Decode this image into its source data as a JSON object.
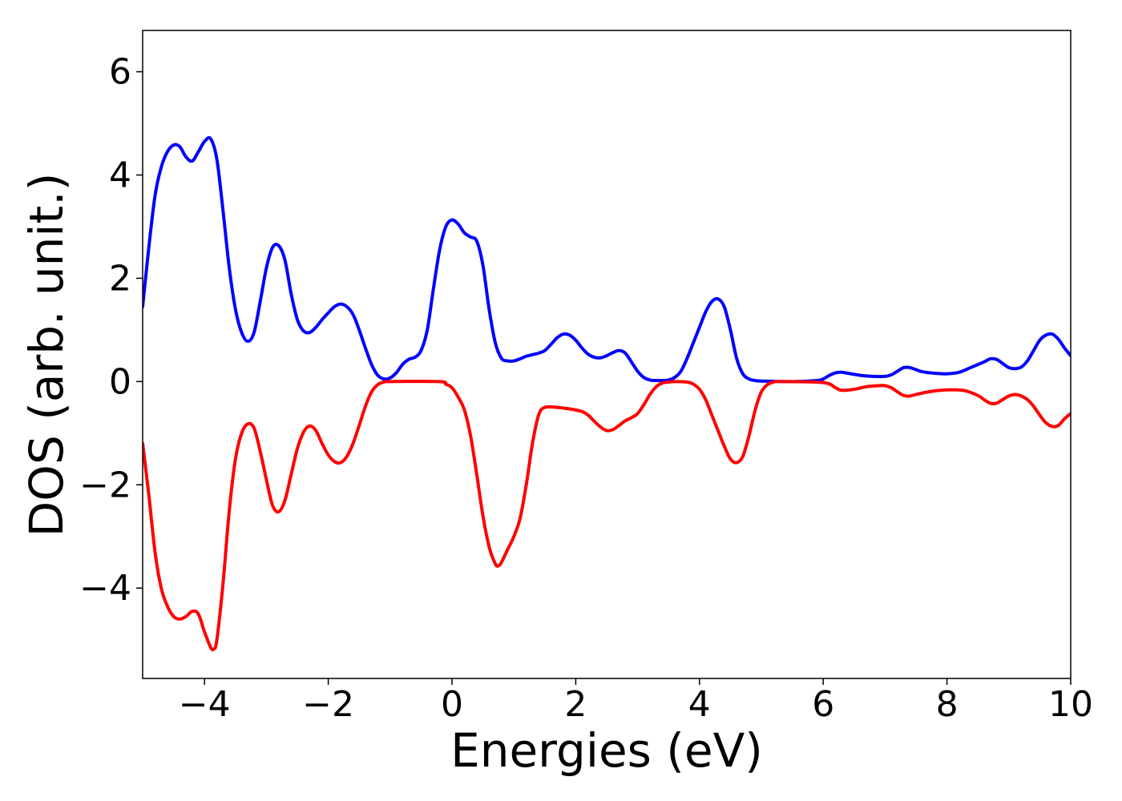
{
  "chart_data": {
    "type": "line",
    "title": "",
    "xlabel": "Energies (eV)",
    "ylabel": "DOS (arb. unit.)",
    "xlim": [
      -5,
      10
    ],
    "ylim": [
      -5.75,
      6.8
    ],
    "xticks": [
      -4,
      -2,
      0,
      2,
      4,
      6,
      8,
      10
    ],
    "xtick_labels": [
      "−4",
      "−2",
      "0",
      "2",
      "4",
      "6",
      "8",
      "10"
    ],
    "yticks": [
      -4,
      -2,
      0,
      2,
      4,
      6
    ],
    "ytick_labels": [
      "−4",
      "−2",
      "0",
      "2",
      "4",
      "6"
    ],
    "grid": false,
    "legend": "none",
    "series": [
      {
        "color": "#0000ff",
        "points": [
          [
            -5.0,
            1.45
          ],
          [
            -4.9,
            2.6
          ],
          [
            -4.8,
            3.6
          ],
          [
            -4.7,
            4.15
          ],
          [
            -4.6,
            4.45
          ],
          [
            -4.5,
            4.58
          ],
          [
            -4.4,
            4.55
          ],
          [
            -4.3,
            4.35
          ],
          [
            -4.2,
            4.27
          ],
          [
            -4.1,
            4.45
          ],
          [
            -4.0,
            4.65
          ],
          [
            -3.9,
            4.7
          ],
          [
            -3.8,
            4.3
          ],
          [
            -3.7,
            3.3
          ],
          [
            -3.6,
            2.2
          ],
          [
            -3.5,
            1.4
          ],
          [
            -3.4,
            0.95
          ],
          [
            -3.3,
            0.78
          ],
          [
            -3.2,
            0.95
          ],
          [
            -3.1,
            1.55
          ],
          [
            -3.0,
            2.2
          ],
          [
            -2.9,
            2.6
          ],
          [
            -2.8,
            2.63
          ],
          [
            -2.7,
            2.35
          ],
          [
            -2.6,
            1.7
          ],
          [
            -2.5,
            1.2
          ],
          [
            -2.4,
            0.98
          ],
          [
            -2.3,
            0.95
          ],
          [
            -2.2,
            1.05
          ],
          [
            -2.1,
            1.2
          ],
          [
            -2.0,
            1.33
          ],
          [
            -1.9,
            1.45
          ],
          [
            -1.8,
            1.5
          ],
          [
            -1.7,
            1.45
          ],
          [
            -1.6,
            1.3
          ],
          [
            -1.5,
            1.0
          ],
          [
            -1.4,
            0.65
          ],
          [
            -1.3,
            0.33
          ],
          [
            -1.2,
            0.12
          ],
          [
            -1.1,
            0.05
          ],
          [
            -1.0,
            0.07
          ],
          [
            -0.9,
            0.17
          ],
          [
            -0.8,
            0.33
          ],
          [
            -0.7,
            0.43
          ],
          [
            -0.6,
            0.47
          ],
          [
            -0.5,
            0.6
          ],
          [
            -0.4,
            1.0
          ],
          [
            -0.3,
            1.8
          ],
          [
            -0.2,
            2.55
          ],
          [
            -0.1,
            3.0
          ],
          [
            0.0,
            3.13
          ],
          [
            0.1,
            3.05
          ],
          [
            0.2,
            2.88
          ],
          [
            0.3,
            2.8
          ],
          [
            0.4,
            2.72
          ],
          [
            0.5,
            2.25
          ],
          [
            0.6,
            1.4
          ],
          [
            0.7,
            0.75
          ],
          [
            0.8,
            0.45
          ],
          [
            0.9,
            0.4
          ],
          [
            1.0,
            0.4
          ],
          [
            1.1,
            0.44
          ],
          [
            1.2,
            0.49
          ],
          [
            1.3,
            0.52
          ],
          [
            1.4,
            0.55
          ],
          [
            1.5,
            0.6
          ],
          [
            1.6,
            0.72
          ],
          [
            1.7,
            0.85
          ],
          [
            1.8,
            0.92
          ],
          [
            1.9,
            0.9
          ],
          [
            2.0,
            0.8
          ],
          [
            2.1,
            0.65
          ],
          [
            2.2,
            0.53
          ],
          [
            2.3,
            0.47
          ],
          [
            2.4,
            0.46
          ],
          [
            2.5,
            0.5
          ],
          [
            2.6,
            0.56
          ],
          [
            2.7,
            0.6
          ],
          [
            2.8,
            0.55
          ],
          [
            2.9,
            0.38
          ],
          [
            3.0,
            0.2
          ],
          [
            3.1,
            0.08
          ],
          [
            3.2,
            0.03
          ],
          [
            3.3,
            0.02
          ],
          [
            3.4,
            0.02
          ],
          [
            3.5,
            0.03
          ],
          [
            3.6,
            0.08
          ],
          [
            3.7,
            0.2
          ],
          [
            3.8,
            0.45
          ],
          [
            3.9,
            0.75
          ],
          [
            4.0,
            1.05
          ],
          [
            4.1,
            1.35
          ],
          [
            4.2,
            1.55
          ],
          [
            4.3,
            1.6
          ],
          [
            4.4,
            1.45
          ],
          [
            4.5,
            1.0
          ],
          [
            4.6,
            0.45
          ],
          [
            4.7,
            0.15
          ],
          [
            4.8,
            0.05
          ],
          [
            4.9,
            0.02
          ],
          [
            5.0,
            0.01
          ],
          [
            5.5,
            0.0
          ],
          [
            5.9,
            0.02
          ],
          [
            6.0,
            0.05
          ],
          [
            6.1,
            0.12
          ],
          [
            6.2,
            0.17
          ],
          [
            6.3,
            0.18
          ],
          [
            6.4,
            0.16
          ],
          [
            6.6,
            0.12
          ],
          [
            6.8,
            0.1
          ],
          [
            7.0,
            0.1
          ],
          [
            7.1,
            0.13
          ],
          [
            7.2,
            0.2
          ],
          [
            7.3,
            0.27
          ],
          [
            7.4,
            0.27
          ],
          [
            7.5,
            0.23
          ],
          [
            7.6,
            0.19
          ],
          [
            7.8,
            0.16
          ],
          [
            8.0,
            0.15
          ],
          [
            8.2,
            0.18
          ],
          [
            8.4,
            0.28
          ],
          [
            8.6,
            0.38
          ],
          [
            8.7,
            0.44
          ],
          [
            8.8,
            0.43
          ],
          [
            8.9,
            0.35
          ],
          [
            9.0,
            0.27
          ],
          [
            9.1,
            0.25
          ],
          [
            9.2,
            0.28
          ],
          [
            9.3,
            0.4
          ],
          [
            9.4,
            0.6
          ],
          [
            9.5,
            0.8
          ],
          [
            9.6,
            0.9
          ],
          [
            9.7,
            0.92
          ],
          [
            9.8,
            0.82
          ],
          [
            9.9,
            0.65
          ],
          [
            10.0,
            0.5
          ]
        ]
      },
      {
        "color": "#ff0000",
        "points": [
          [
            -5.0,
            -1.2
          ],
          [
            -4.9,
            -2.2
          ],
          [
            -4.8,
            -3.3
          ],
          [
            -4.7,
            -4.0
          ],
          [
            -4.6,
            -4.35
          ],
          [
            -4.5,
            -4.55
          ],
          [
            -4.4,
            -4.6
          ],
          [
            -4.3,
            -4.55
          ],
          [
            -4.2,
            -4.45
          ],
          [
            -4.1,
            -4.5
          ],
          [
            -4.0,
            -4.85
          ],
          [
            -3.9,
            -5.15
          ],
          [
            -3.85,
            -5.18
          ],
          [
            -3.8,
            -5.0
          ],
          [
            -3.7,
            -3.9
          ],
          [
            -3.6,
            -2.5
          ],
          [
            -3.5,
            -1.5
          ],
          [
            -3.4,
            -1.0
          ],
          [
            -3.3,
            -0.82
          ],
          [
            -3.2,
            -0.9
          ],
          [
            -3.1,
            -1.35
          ],
          [
            -3.0,
            -1.9
          ],
          [
            -2.9,
            -2.4
          ],
          [
            -2.8,
            -2.52
          ],
          [
            -2.7,
            -2.3
          ],
          [
            -2.6,
            -1.8
          ],
          [
            -2.5,
            -1.3
          ],
          [
            -2.4,
            -0.98
          ],
          [
            -2.3,
            -0.86
          ],
          [
            -2.2,
            -0.95
          ],
          [
            -2.1,
            -1.2
          ],
          [
            -2.0,
            -1.42
          ],
          [
            -1.9,
            -1.55
          ],
          [
            -1.8,
            -1.57
          ],
          [
            -1.7,
            -1.45
          ],
          [
            -1.6,
            -1.2
          ],
          [
            -1.5,
            -0.85
          ],
          [
            -1.4,
            -0.48
          ],
          [
            -1.3,
            -0.2
          ],
          [
            -1.2,
            -0.06
          ],
          [
            -1.1,
            -0.01
          ],
          [
            -1.0,
            0.0
          ],
          [
            -0.2,
            0.0
          ],
          [
            -0.1,
            -0.05
          ],
          [
            0.0,
            -0.12
          ],
          [
            0.1,
            -0.3
          ],
          [
            0.2,
            -0.55
          ],
          [
            0.3,
            -1.05
          ],
          [
            0.4,
            -1.8
          ],
          [
            0.5,
            -2.6
          ],
          [
            0.6,
            -3.2
          ],
          [
            0.7,
            -3.53
          ],
          [
            0.75,
            -3.57
          ],
          [
            0.8,
            -3.5
          ],
          [
            0.9,
            -3.25
          ],
          [
            1.0,
            -3.0
          ],
          [
            1.1,
            -2.65
          ],
          [
            1.2,
            -2.0
          ],
          [
            1.3,
            -1.2
          ],
          [
            1.4,
            -0.65
          ],
          [
            1.5,
            -0.5
          ],
          [
            1.7,
            -0.5
          ],
          [
            1.9,
            -0.53
          ],
          [
            2.1,
            -0.58
          ],
          [
            2.2,
            -0.65
          ],
          [
            2.3,
            -0.77
          ],
          [
            2.4,
            -0.88
          ],
          [
            2.5,
            -0.95
          ],
          [
            2.6,
            -0.93
          ],
          [
            2.7,
            -0.85
          ],
          [
            2.8,
            -0.76
          ],
          [
            2.9,
            -0.7
          ],
          [
            3.0,
            -0.62
          ],
          [
            3.1,
            -0.45
          ],
          [
            3.2,
            -0.25
          ],
          [
            3.3,
            -0.1
          ],
          [
            3.4,
            -0.03
          ],
          [
            3.5,
            -0.01
          ],
          [
            3.6,
            0.0
          ],
          [
            3.8,
            -0.01
          ],
          [
            3.9,
            -0.05
          ],
          [
            4.0,
            -0.15
          ],
          [
            4.1,
            -0.35
          ],
          [
            4.2,
            -0.65
          ],
          [
            4.3,
            -0.95
          ],
          [
            4.4,
            -1.25
          ],
          [
            4.5,
            -1.5
          ],
          [
            4.6,
            -1.57
          ],
          [
            4.7,
            -1.45
          ],
          [
            4.8,
            -1.05
          ],
          [
            4.9,
            -0.55
          ],
          [
            5.0,
            -0.2
          ],
          [
            5.1,
            -0.06
          ],
          [
            5.2,
            -0.01
          ],
          [
            5.3,
            0.0
          ],
          [
            6.0,
            -0.02
          ],
          [
            6.2,
            -0.12
          ],
          [
            6.3,
            -0.17
          ],
          [
            6.5,
            -0.15
          ],
          [
            6.7,
            -0.1
          ],
          [
            6.9,
            -0.08
          ],
          [
            7.0,
            -0.08
          ],
          [
            7.1,
            -0.12
          ],
          [
            7.2,
            -0.2
          ],
          [
            7.3,
            -0.27
          ],
          [
            7.4,
            -0.28
          ],
          [
            7.5,
            -0.25
          ],
          [
            7.7,
            -0.2
          ],
          [
            7.9,
            -0.17
          ],
          [
            8.1,
            -0.16
          ],
          [
            8.3,
            -0.18
          ],
          [
            8.5,
            -0.27
          ],
          [
            8.6,
            -0.35
          ],
          [
            8.7,
            -0.42
          ],
          [
            8.8,
            -0.42
          ],
          [
            8.9,
            -0.35
          ],
          [
            9.0,
            -0.28
          ],
          [
            9.1,
            -0.25
          ],
          [
            9.2,
            -0.28
          ],
          [
            9.3,
            -0.35
          ],
          [
            9.4,
            -0.48
          ],
          [
            9.5,
            -0.65
          ],
          [
            9.6,
            -0.8
          ],
          [
            9.7,
            -0.87
          ],
          [
            9.8,
            -0.85
          ],
          [
            9.9,
            -0.72
          ],
          [
            10.0,
            -0.62
          ]
        ]
      }
    ]
  }
}
